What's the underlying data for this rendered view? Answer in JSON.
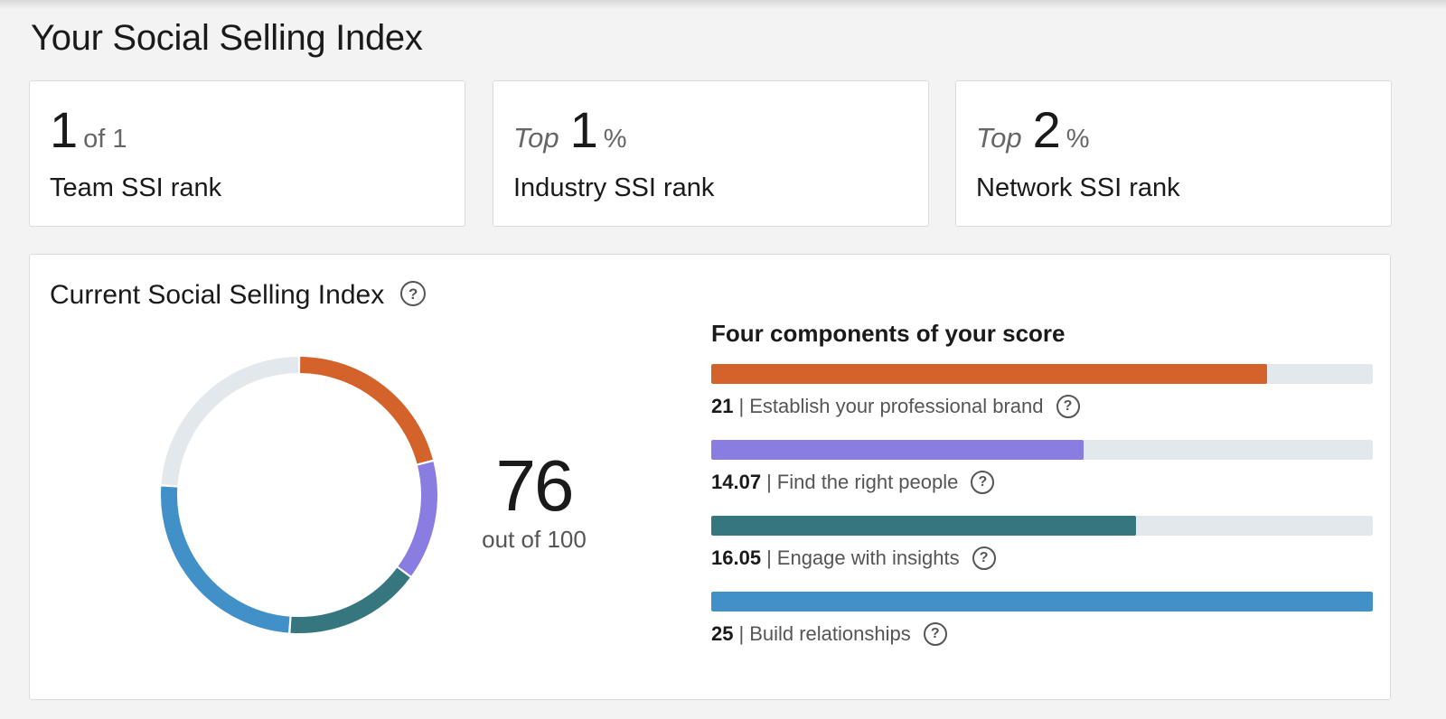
{
  "page": {
    "title": "Your Social Selling Index"
  },
  "ranks": [
    {
      "prefix": "",
      "value": "1",
      "suffix": "of 1",
      "label": "Team SSI rank"
    },
    {
      "prefix": "Top",
      "value": "1",
      "suffix": "%",
      "label": "Industry SSI rank"
    },
    {
      "prefix": "Top",
      "value": "2",
      "suffix": "%",
      "label": "Network SSI rank"
    }
  ],
  "current": {
    "title": "Current Social Selling Index",
    "help_icon": "question-circle-icon",
    "score": "76",
    "score_caption": "out of 100",
    "components_title": "Four components of your score",
    "components": [
      {
        "score": "21",
        "label": "Establish your professional brand",
        "value": 21,
        "max": 25,
        "color": "#d4622b"
      },
      {
        "score": "14.07",
        "label": "Find the right people",
        "value": 14.07,
        "max": 25,
        "color": "#8a7de2"
      },
      {
        "score": "16.05",
        "label": "Engage with insights",
        "value": 16.05,
        "max": 25,
        "color": "#35767f"
      },
      {
        "score": "25",
        "label": "Build relationships",
        "value": 25,
        "max": 25,
        "color": "#4191c8"
      }
    ],
    "donut_remaining_color": "#e3e8ec",
    "separator": "|"
  }
}
